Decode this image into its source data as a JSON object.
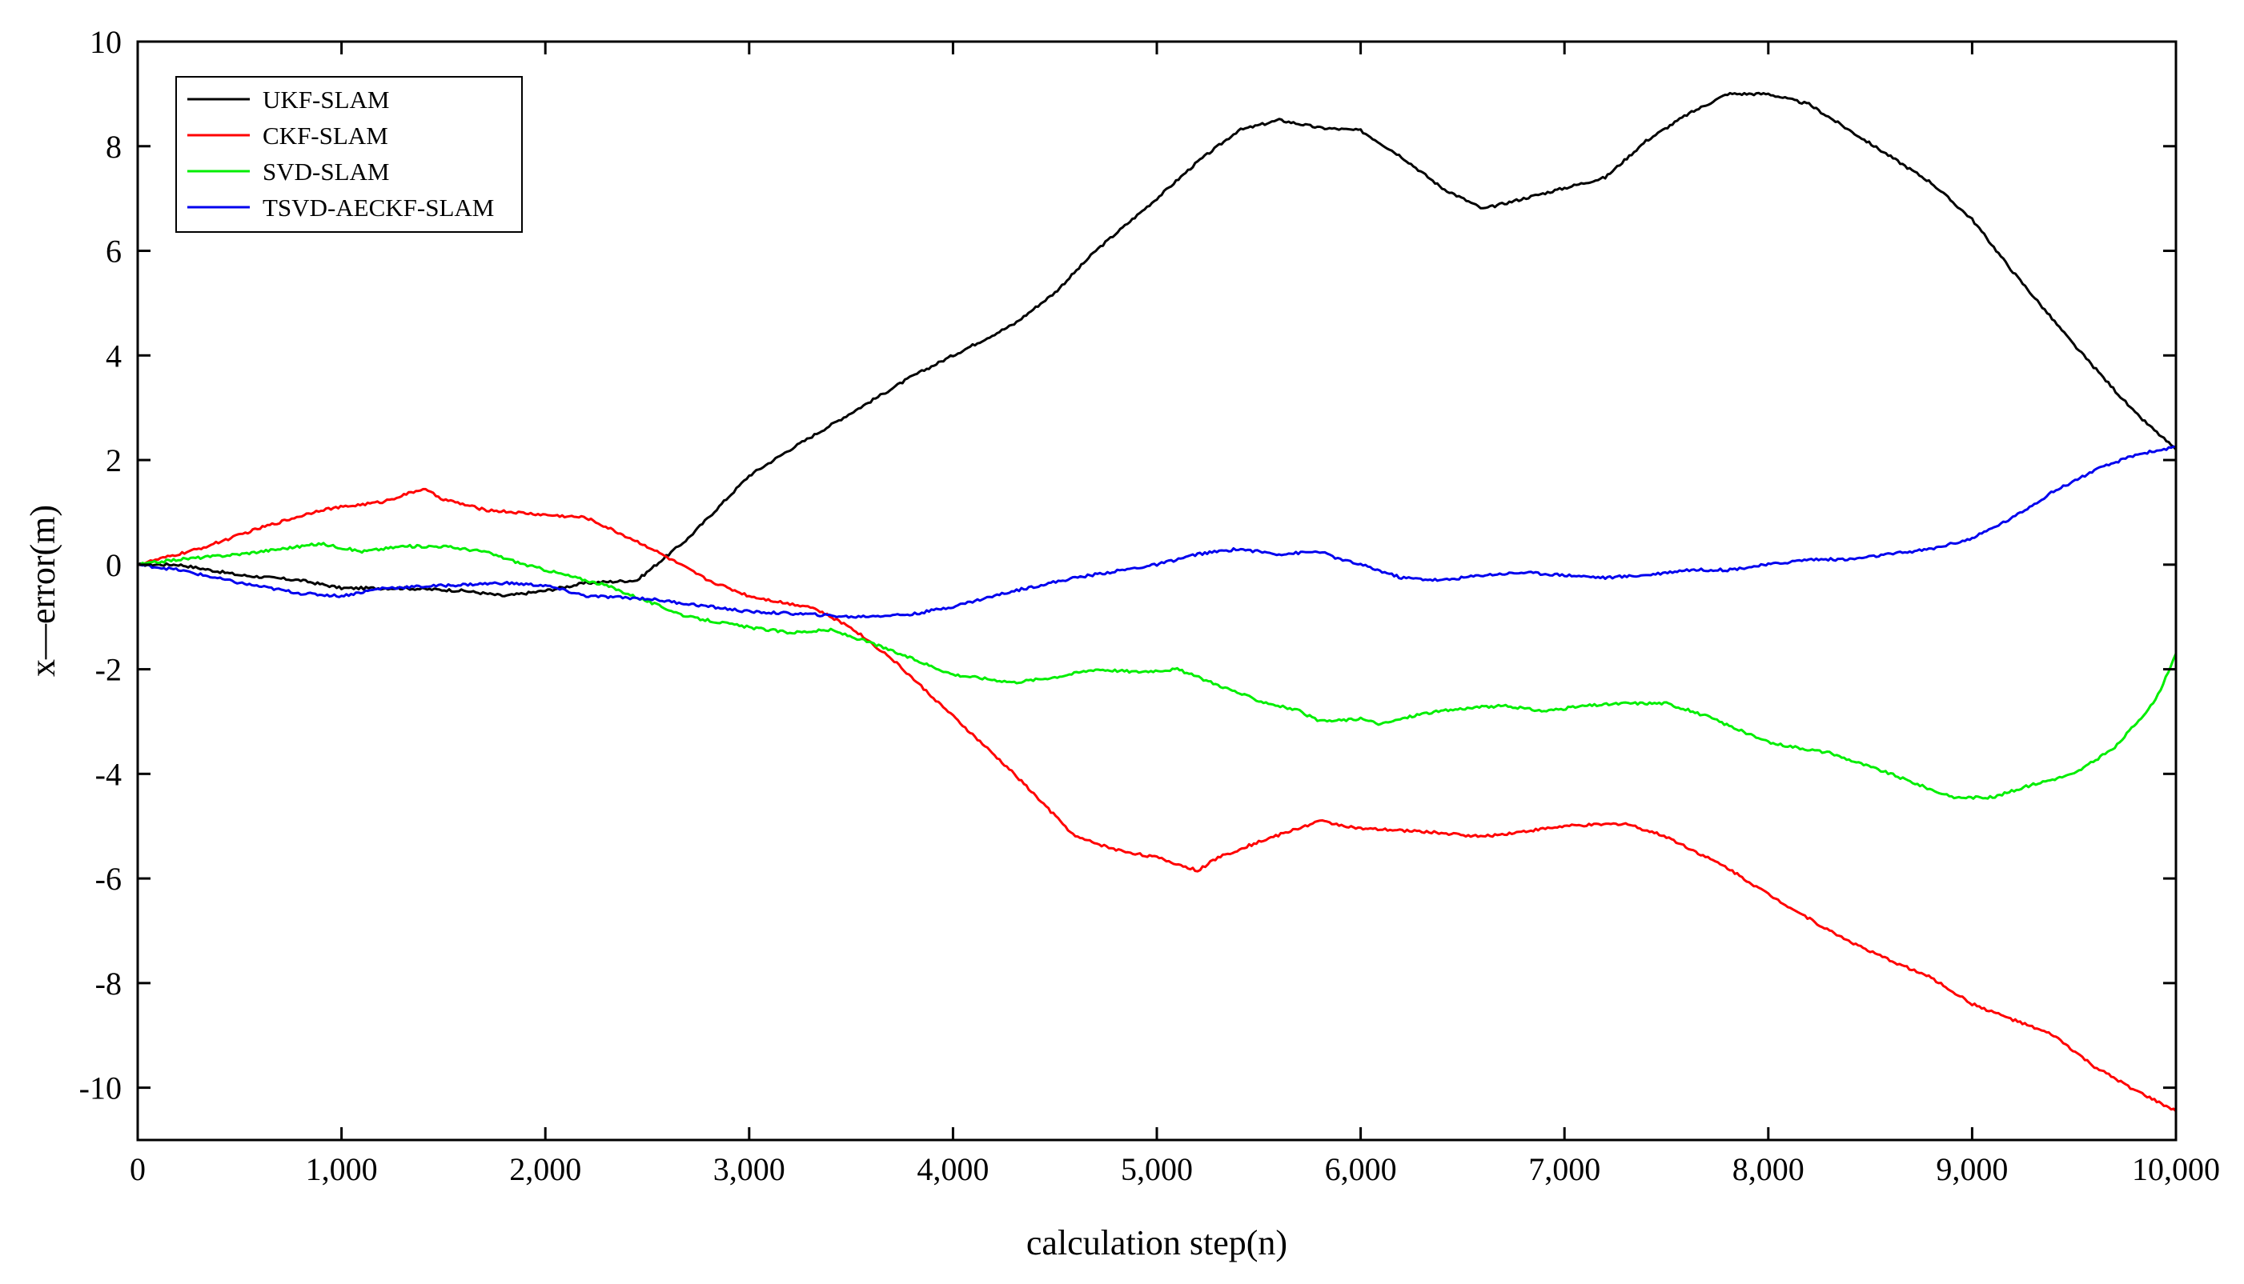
{
  "chart_data": {
    "type": "line",
    "title": "",
    "xlabel": "calculation step(n)",
    "ylabel": "x—error(m)",
    "xlim": [
      0,
      10000
    ],
    "ylim": [
      -11,
      10
    ],
    "x_ticks": [
      0,
      1000,
      2000,
      3000,
      4000,
      5000,
      6000,
      7000,
      8000,
      9000,
      10000
    ],
    "x_tick_labels": [
      "0",
      "1,000",
      "2,000",
      "3,000",
      "4,000",
      "5,000",
      "6,000",
      "7,000",
      "8,000",
      "9,000",
      "10,000"
    ],
    "y_ticks": [
      -10,
      -8,
      -6,
      -4,
      -2,
      0,
      2,
      4,
      6,
      8,
      10
    ],
    "y_tick_labels": [
      "-10",
      "-8",
      "-6",
      "-4",
      "-2",
      "0",
      "2",
      "4",
      "6",
      "8",
      "10"
    ],
    "grid": false,
    "legend_position": "top-left",
    "series": [
      {
        "name": "UKF-SLAM",
        "color": "#000000",
        "x": [
          0,
          200,
          500,
          800,
          1000,
          1300,
          1600,
          1800,
          2000,
          2200,
          2450,
          2700,
          2900,
          3000,
          3200,
          3500,
          3800,
          4000,
          4300,
          4500,
          4700,
          5000,
          5200,
          5400,
          5600,
          5800,
          6000,
          6200,
          6400,
          6600,
          6800,
          7000,
          7200,
          7400,
          7600,
          7800,
          8000,
          8200,
          8400,
          8600,
          8800,
          9000,
          9200,
          9500,
          9800,
          10000
        ],
        "y": [
          0,
          0,
          -0.2,
          -0.3,
          -0.45,
          -0.45,
          -0.5,
          -0.6,
          -0.5,
          -0.35,
          -0.3,
          0.5,
          1.3,
          1.7,
          2.2,
          2.9,
          3.6,
          4.0,
          4.6,
          5.2,
          6.0,
          7.0,
          7.7,
          8.3,
          8.5,
          8.35,
          8.3,
          7.8,
          7.2,
          6.8,
          7.0,
          7.2,
          7.4,
          8.1,
          8.6,
          9.0,
          9.0,
          8.8,
          8.3,
          7.8,
          7.3,
          6.6,
          5.6,
          4.2,
          2.9,
          2.2
        ]
      },
      {
        "name": "CKF-SLAM",
        "color": "#ff0000",
        "x": [
          0,
          100,
          300,
          600,
          900,
          1200,
          1400,
          1500,
          1700,
          2000,
          2200,
          2500,
          2800,
          3000,
          3200,
          3300,
          3500,
          3700,
          4000,
          4300,
          4600,
          4800,
          5000,
          5200,
          5300,
          5500,
          5800,
          6000,
          6300,
          6600,
          6800,
          7000,
          7300,
          7500,
          7800,
          8000,
          8300,
          8500,
          8800,
          9000,
          9200,
          9400,
          9600,
          9800,
          10000
        ],
        "y": [
          0,
          0.1,
          0.3,
          0.7,
          1.05,
          1.2,
          1.45,
          1.25,
          1.05,
          0.95,
          0.9,
          0.35,
          -0.3,
          -0.6,
          -0.75,
          -0.8,
          -1.2,
          -1.8,
          -2.9,
          -4.0,
          -5.2,
          -5.45,
          -5.6,
          -5.85,
          -5.6,
          -5.3,
          -4.9,
          -5.05,
          -5.1,
          -5.2,
          -5.1,
          -5.0,
          -4.95,
          -5.2,
          -5.8,
          -6.3,
          -7.0,
          -7.4,
          -7.9,
          -8.4,
          -8.7,
          -9.0,
          -9.6,
          -10.05,
          -10.45
        ]
      },
      {
        "name": "SVD-SLAM",
        "color": "#00ee00",
        "x": [
          0,
          200,
          500,
          700,
          900,
          1100,
          1300,
          1500,
          1700,
          1900,
          2100,
          2300,
          2500,
          2700,
          3000,
          3200,
          3400,
          3600,
          3800,
          4000,
          4300,
          4500,
          4700,
          4900,
          5100,
          5300,
          5500,
          5700,
          5800,
          6000,
          6100,
          6300,
          6500,
          6700,
          6900,
          7100,
          7300,
          7500,
          7700,
          8000,
          8300,
          8600,
          8900,
          9100,
          9300,
          9500,
          9700,
          9900,
          10000
        ],
        "y": [
          0,
          0.1,
          0.2,
          0.3,
          0.4,
          0.25,
          0.35,
          0.35,
          0.25,
          0,
          -0.2,
          -0.4,
          -0.7,
          -1.0,
          -1.2,
          -1.3,
          -1.25,
          -1.5,
          -1.8,
          -2.1,
          -2.25,
          -2.15,
          -2.0,
          -2.05,
          -2.0,
          -2.3,
          -2.6,
          -2.8,
          -3.0,
          -2.95,
          -3.05,
          -2.85,
          -2.75,
          -2.7,
          -2.8,
          -2.7,
          -2.65,
          -2.65,
          -2.9,
          -3.4,
          -3.6,
          -4.0,
          -4.45,
          -4.45,
          -4.2,
          -4.0,
          -3.5,
          -2.6,
          -1.7
        ]
      },
      {
        "name": "TSVD-AECKF-SLAM",
        "color": "#0000ee",
        "x": [
          0,
          200,
          500,
          800,
          1000,
          1200,
          1500,
          1800,
          2000,
          2200,
          2500,
          2800,
          3000,
          3300,
          3500,
          3800,
          4000,
          4300,
          4600,
          5000,
          5200,
          5400,
          5600,
          5800,
          5900,
          6000,
          6200,
          6400,
          6600,
          6800,
          7000,
          7200,
          7400,
          7600,
          7800,
          8000,
          8200,
          8400,
          8600,
          8800,
          9000,
          9200,
          9400,
          9600,
          9800,
          10000
        ],
        "y": [
          0,
          -0.1,
          -0.35,
          -0.55,
          -0.6,
          -0.45,
          -0.4,
          -0.35,
          -0.4,
          -0.6,
          -0.65,
          -0.8,
          -0.9,
          -0.95,
          -1.0,
          -0.95,
          -0.8,
          -0.5,
          -0.25,
          0.0,
          0.2,
          0.3,
          0.2,
          0.25,
          0.1,
          0.0,
          -0.25,
          -0.3,
          -0.2,
          -0.15,
          -0.2,
          -0.25,
          -0.2,
          -0.1,
          -0.1,
          0.0,
          0.1,
          0.1,
          0.2,
          0.3,
          0.5,
          0.9,
          1.4,
          1.8,
          2.1,
          2.25
        ]
      }
    ]
  }
}
